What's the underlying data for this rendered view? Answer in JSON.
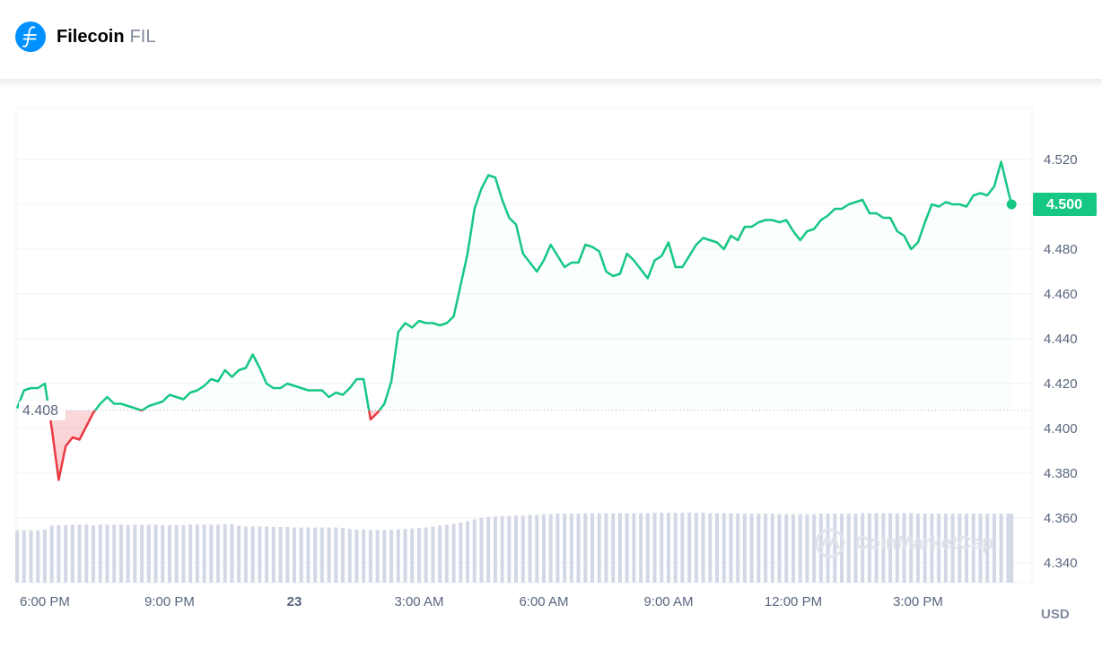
{
  "chart_data": {
    "type": "line",
    "title": "Filecoin",
    "symbol": "FIL",
    "currency": "USD",
    "watermark": "CoinMarketCap",
    "grid": true,
    "x": [
      1040,
      1050,
      1060,
      1070,
      1080,
      1090,
      1100,
      1110,
      1120,
      1130,
      1140,
      1150,
      1160,
      1170,
      1180,
      1190,
      1200,
      1210,
      1220,
      1230,
      1240,
      1250,
      1260,
      1270,
      1280,
      1290,
      1300,
      1310,
      1320,
      1330,
      1340,
      1350,
      1360,
      1370,
      1380,
      1390,
      1400,
      1410,
      1420,
      1430,
      1440,
      1450,
      1460,
      1470,
      1480,
      1490,
      1500,
      1510,
      1520,
      1530,
      1540,
      1550,
      1560,
      1570,
      1580,
      1590,
      1600,
      1610,
      1620,
      1630,
      1640,
      1650,
      1660,
      1670,
      1680,
      1690,
      1700,
      1710,
      1720,
      1730,
      1740,
      1750,
      1760,
      1770,
      1780,
      1790,
      1800,
      1810,
      1820,
      1830,
      1840,
      1850,
      1860,
      1870,
      1880,
      1890,
      1900,
      1910,
      1920,
      1930,
      1940,
      1950,
      1960,
      1970,
      1980,
      1990,
      2000,
      2010,
      2020,
      2030,
      2040,
      2050,
      2060,
      2070,
      2080,
      2090,
      2100,
      2110,
      2120,
      2130,
      2140,
      2150,
      2160,
      2170,
      2180,
      2190,
      2200,
      2210,
      2220,
      2230,
      2240,
      2250,
      2260,
      2270,
      2280,
      2290,
      2300,
      2310,
      2320,
      2330,
      2340,
      2350,
      2360,
      2370,
      2380,
      2390,
      2400,
      2410,
      2420,
      2430,
      2440,
      2450,
      2460,
      2470,
      2475
    ],
    "xlim": [
      1038.6,
      2504.5
    ],
    "xticks": [
      {
        "value": 1080,
        "label": "6:00 PM"
      },
      {
        "value": 1260,
        "label": "9:00 PM"
      },
      {
        "value": 1440,
        "label": "23"
      },
      {
        "value": 1620,
        "label": "3:00 AM"
      },
      {
        "value": 1800,
        "label": "6:00 AM"
      },
      {
        "value": 1980,
        "label": "9:00 AM"
      },
      {
        "value": 2160,
        "label": "12:00 PM"
      },
      {
        "value": 2340,
        "label": "3:00 PM"
      }
    ],
    "ylim": [
      4.3312,
      4.5432
    ],
    "yticks": [
      {
        "value": 4.34,
        "label": "4.340"
      },
      {
        "value": 4.36,
        "label": "4.360"
      },
      {
        "value": 4.38,
        "label": "4.380"
      },
      {
        "value": 4.4,
        "label": "4.400"
      },
      {
        "value": 4.42,
        "label": "4.420"
      },
      {
        "value": 4.44,
        "label": "4.440"
      },
      {
        "value": 4.46,
        "label": "4.460"
      },
      {
        "value": 4.48,
        "label": "4.480"
      },
      {
        "value": 4.5,
        "label": "4.500"
      },
      {
        "value": 4.52,
        "label": "4.520"
      }
    ],
    "reference": 4.408,
    "last_price": {
      "value": 4.5,
      "label": "4.500"
    },
    "series": [
      {
        "color": "#16c784",
        "down_color": "#ea3943",
        "values": [
          4.409,
          4.417,
          4.418,
          4.418,
          4.42,
          4.4,
          4.377,
          4.392,
          4.396,
          4.395,
          4.401,
          4.407,
          4.411,
          4.414,
          4.411,
          4.411,
          4.41,
          4.409,
          4.408,
          4.41,
          4.411,
          4.412,
          4.415,
          4.414,
          4.413,
          4.416,
          4.417,
          4.419,
          4.422,
          4.421,
          4.426,
          4.423,
          4.426,
          4.427,
          4.433,
          4.427,
          4.42,
          4.418,
          4.418,
          4.42,
          4.419,
          4.418,
          4.417,
          4.417,
          4.417,
          4.414,
          4.416,
          4.415,
          4.418,
          4.422,
          4.422,
          4.404,
          4.407,
          4.411,
          4.421,
          4.443,
          4.447,
          4.445,
          4.448,
          4.447,
          4.447,
          4.446,
          4.447,
          4.45,
          4.464,
          4.478,
          4.498,
          4.507,
          4.513,
          4.512,
          4.502,
          4.494,
          4.491,
          4.478,
          4.474,
          4.47,
          4.475,
          4.482,
          4.477,
          4.472,
          4.474,
          4.474,
          4.482,
          4.481,
          4.479,
          4.47,
          4.468,
          4.469,
          4.478,
          4.475,
          4.471,
          4.467,
          4.475,
          4.477,
          4.483,
          4.472,
          4.472,
          4.477,
          4.482,
          4.485,
          4.484,
          4.483,
          4.48,
          4.486,
          4.484,
          4.49,
          4.49,
          4.492,
          4.493,
          4.493,
          4.492,
          4.493,
          4.488,
          4.484,
          4.488,
          4.489,
          4.493,
          4.495,
          4.498,
          4.498,
          4.5,
          4.501,
          4.502,
          4.496,
          4.496,
          4.494,
          4.494,
          4.488,
          4.486,
          4.48,
          4.483,
          4.492,
          4.5,
          4.499,
          4.501,
          4.5,
          4.5,
          4.499,
          4.504,
          4.505,
          4.504,
          4.508,
          4.519,
          4.506,
          4.5
        ]
      }
    ],
    "volume": {
      "color": "#d3d8e6",
      "ylim": [
        0,
        100
      ],
      "values": [
        11,
        11,
        11,
        11,
        11.2,
        12,
        12.1,
        12.1,
        12.2,
        12.2,
        12.2,
        12.1,
        12.2,
        12.2,
        12.2,
        12.2,
        12.1,
        12.2,
        12.2,
        12.2,
        12.2,
        12.1,
        12.1,
        12.1,
        12.1,
        12.2,
        12.2,
        12.2,
        12.2,
        12.2,
        12.3,
        12.3,
        12,
        11.8,
        11.8,
        11.8,
        11.8,
        11.7,
        11.7,
        11.7,
        11.6,
        11.6,
        11.6,
        11.6,
        11.6,
        11.6,
        11.6,
        11.5,
        11.3,
        11.2,
        11.2,
        11.1,
        11.1,
        11.1,
        11.1,
        11.2,
        11.3,
        11.4,
        11.5,
        11.6,
        11.8,
        12,
        12.2,
        12.4,
        12.6,
        12.9,
        13.3,
        13.6,
        13.8,
        13.9,
        14,
        14,
        14.1,
        14.1,
        14.2,
        14.3,
        14.4,
        14.4,
        14.5,
        14.5,
        14.5,
        14.5,
        14.6,
        14.6,
        14.6,
        14.6,
        14.6,
        14.6,
        14.6,
        14.6,
        14.6,
        14.6,
        14.7,
        14.7,
        14.7,
        14.7,
        14.7,
        14.7,
        14.7,
        14.7,
        14.6,
        14.6,
        14.6,
        14.6,
        14.6,
        14.5,
        14.5,
        14.5,
        14.5,
        14.5,
        14.4,
        14.4,
        14.4,
        14.4,
        14.4,
        14.4,
        14.5,
        14.5,
        14.5,
        14.5,
        14.5,
        14.5,
        14.6,
        14.6,
        14.6,
        14.6,
        14.6,
        14.6,
        14.6,
        14.6,
        14.5,
        14.5,
        14.5,
        14.5,
        14.5,
        14.5,
        14.5,
        14.5,
        14.5,
        14.5,
        14.5,
        14.5,
        14.5,
        14.5,
        14.5
      ]
    }
  }
}
